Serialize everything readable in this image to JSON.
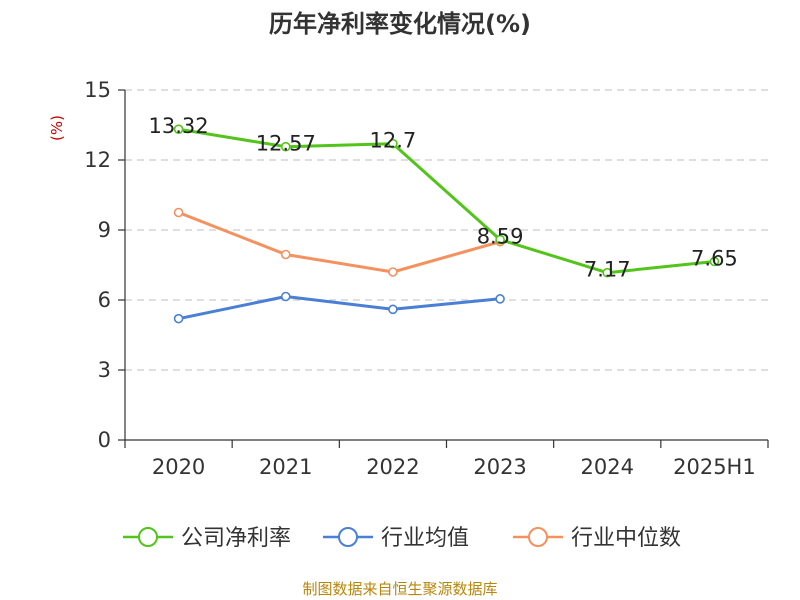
{
  "chart_data": {
    "type": "line",
    "title": "历年净利率变化情况(%)",
    "ylabel": "(%)",
    "categories": [
      "2020",
      "2021",
      "2022",
      "2023",
      "2024",
      "2025H1"
    ],
    "ylim": [
      0,
      15
    ],
    "yticks": [
      0,
      3,
      6,
      9,
      12,
      15
    ],
    "grid": true,
    "legend_position": "bottom",
    "series": [
      {
        "name": "公司净利率",
        "color": "#52c41a",
        "values": [
          13.32,
          12.57,
          12.7,
          8.59,
          7.17,
          7.65
        ],
        "labels": [
          "13.32",
          "12.57",
          "12.7",
          "8.59",
          "7.17",
          "7.65"
        ]
      },
      {
        "name": "行业均值",
        "color": "#4a7fd6",
        "values": [
          5.2,
          6.15,
          5.6,
          6.05,
          null,
          null
        ]
      },
      {
        "name": "行业中位数",
        "color": "#f4915e",
        "values": [
          9.75,
          7.95,
          7.2,
          8.5,
          null,
          null
        ]
      }
    ]
  },
  "source_note": "制图数据来自恒生聚源数据库",
  "colors": {
    "unit_label": "#cc0000",
    "axis": "#333333",
    "grid": "#cccccc"
  }
}
